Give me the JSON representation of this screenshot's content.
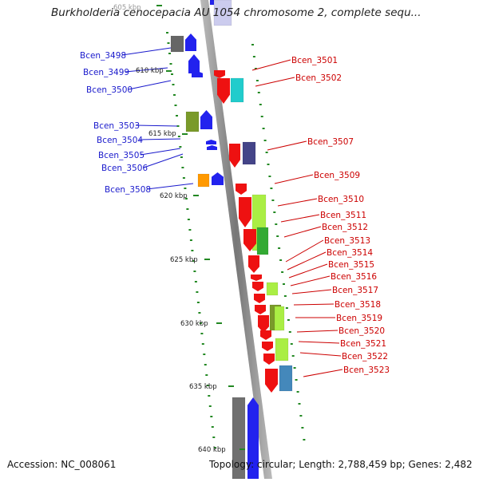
{
  "header": {
    "title": "Burkholderia cenocepacia AU 1054 chromosome 2, complete sequ..."
  },
  "footer": {
    "accession": "Accession: NC_008061",
    "summary": "Topology: circular; Length: 2,788,459 bp; Genes: 2,482"
  },
  "ticks": [
    "605 kbp",
    "610 kbp",
    "615 kbp",
    "620 kbp",
    "625 kbp",
    "630 kbp",
    "635 kbp",
    "640 kbp"
  ],
  "genes_left": [
    "Bcen_3498",
    "Bcen_3499",
    "Bcen_3500",
    "Bcen_3503",
    "Bcen_3504",
    "Bcen_3505",
    "Bcen_3506",
    "Bcen_3508"
  ],
  "genes_right": [
    "Bcen_3501",
    "Bcen_3502",
    "Bcen_3507",
    "Bcen_3509",
    "Bcen_3510",
    "Bcen_3511",
    "Bcen_3512",
    "Bcen_3513",
    "Bcen_3514",
    "Bcen_3515",
    "Bcen_3516",
    "Bcen_3517",
    "Bcen_3518",
    "Bcen_3519",
    "Bcen_3520",
    "Bcen_3521",
    "Bcen_3522",
    "Bcen_3523"
  ],
  "colors": {
    "forward_strand": "#2222ee",
    "reverse_strand": "#ee1111",
    "backbone": "#888888",
    "tick": "#228822",
    "label_left": "#1a1acc",
    "label_right": "#cc0000",
    "cog_olive": "#7a9a2a",
    "cog_lime": "#aaee44",
    "cog_cyan": "#22cccc",
    "cog_navy": "#444488",
    "cog_orange": "#ff9900",
    "cog_steel": "#4488bb",
    "cog_gray": "#666666",
    "cog_green": "#33aa33"
  }
}
